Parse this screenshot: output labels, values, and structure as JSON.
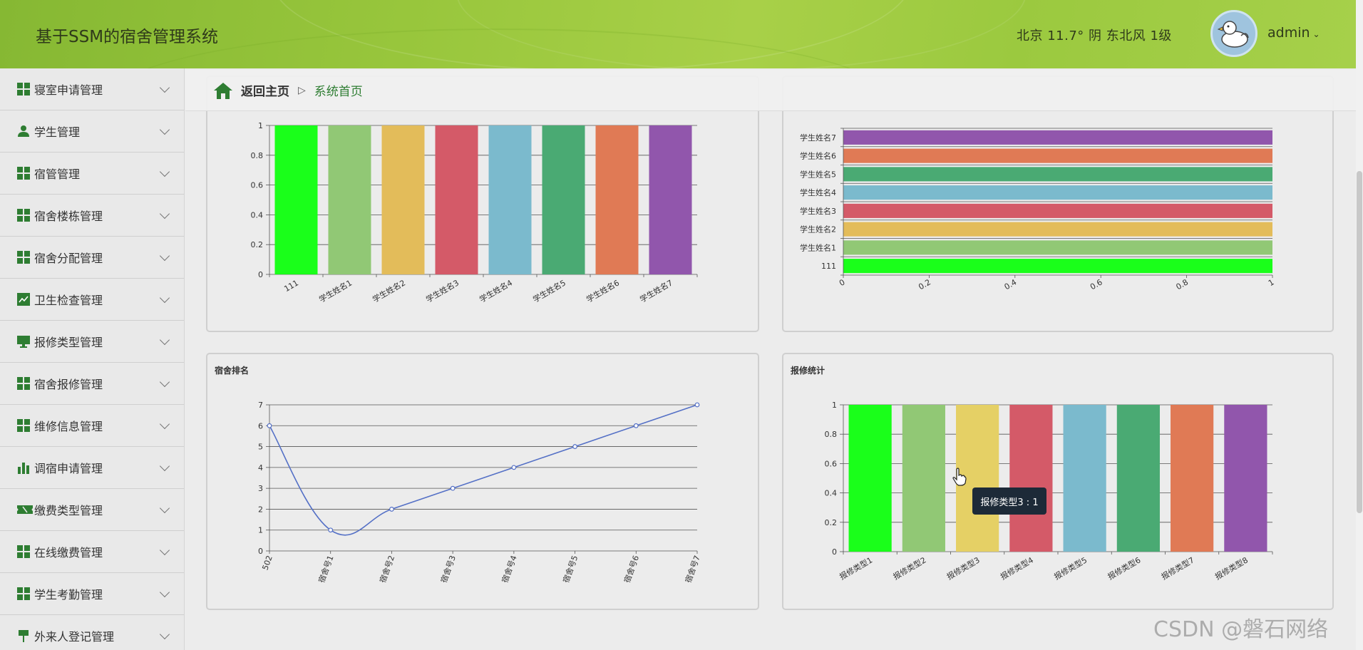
{
  "header": {
    "title": "基于SSM的宿舍管理系统",
    "weather": "北京  11.7°  阴  东北风  1级",
    "user": "admin"
  },
  "sidebar": {
    "items": [
      {
        "label": "寝室申请管理",
        "icon": "grid-icon"
      },
      {
        "label": "学生管理",
        "icon": "user-icon"
      },
      {
        "label": "宿管管理",
        "icon": "grid-icon"
      },
      {
        "label": "宿舍楼栋管理",
        "icon": "grid-icon"
      },
      {
        "label": "宿舍分配管理",
        "icon": "grid-icon"
      },
      {
        "label": "卫生检查管理",
        "icon": "line-chart-icon"
      },
      {
        "label": "报修类型管理",
        "icon": "monitor-icon"
      },
      {
        "label": "宿舍报修管理",
        "icon": "grid-icon"
      },
      {
        "label": "维修信息管理",
        "icon": "grid-icon"
      },
      {
        "label": "调宿申请管理",
        "icon": "bar-chart-icon"
      },
      {
        "label": "缴费类型管理",
        "icon": "ticket-icon"
      },
      {
        "label": "在线缴费管理",
        "icon": "grid-icon"
      },
      {
        "label": "学生考勤管理",
        "icon": "grid-icon"
      },
      {
        "label": "外来人登记管理",
        "icon": "flag-icon"
      }
    ]
  },
  "breadcrumb": {
    "home": "返回主页",
    "separator": "▷",
    "current": "系统首页"
  },
  "chart_data": [
    {
      "type": "bar",
      "title": "",
      "categories": [
        "111",
        "学生姓名1",
        "学生姓名2",
        "学生姓名3",
        "学生姓名4",
        "学生姓名5",
        "学生姓名6",
        "学生姓名7"
      ],
      "values": [
        1,
        1,
        1,
        1,
        1,
        1,
        1,
        1
      ],
      "ylim": [
        0,
        1
      ],
      "yticks": [
        "0",
        "0.2",
        "0.4",
        "0.6",
        "0.8",
        "1"
      ],
      "colors": [
        "#1aff1a",
        "#91c875",
        "#e3bc5a",
        "#d45a68",
        "#7bbacd",
        "#4aaa73",
        "#e07a55",
        "#9156ac"
      ]
    },
    {
      "type": "bar",
      "orientation": "horizontal",
      "title": "",
      "categories": [
        "111",
        "学生姓名1",
        "学生姓名2",
        "学生姓名3",
        "学生姓名4",
        "学生姓名5",
        "学生姓名6",
        "学生姓名7"
      ],
      "values": [
        1,
        1,
        1,
        1,
        1,
        1,
        1,
        1
      ],
      "xlim": [
        0,
        1
      ],
      "xticks": [
        "0",
        "0.2",
        "0.4",
        "0.6",
        "0.8",
        "1"
      ],
      "colors": [
        "#1aff1a",
        "#91c875",
        "#e3bc5a",
        "#d45a68",
        "#7bbacd",
        "#4aaa73",
        "#e07a55",
        "#9156ac"
      ]
    },
    {
      "type": "line",
      "title": "宿舍排名",
      "categories": [
        "502",
        "宿舍号1",
        "宿舍号2",
        "宿舍号3",
        "宿舍号4",
        "宿舍号5",
        "宿舍号6",
        "宿舍号7"
      ],
      "values": [
        6,
        1,
        2,
        3,
        4,
        5,
        6,
        7
      ],
      "ylim": [
        0,
        7
      ],
      "yticks": [
        "0",
        "1",
        "2",
        "3",
        "4",
        "5",
        "6",
        "7"
      ],
      "color": "#5470c6"
    },
    {
      "type": "bar",
      "title": "报修统计",
      "categories": [
        "报修类型1",
        "报修类型2",
        "报修类型3",
        "报修类型4",
        "报修类型5",
        "报修类型6",
        "报修类型7",
        "报修类型8"
      ],
      "values": [
        1,
        1,
        1,
        1,
        1,
        1,
        1,
        1
      ],
      "ylim": [
        0,
        1
      ],
      "yticks": [
        "0",
        "0.2",
        "0.4",
        "0.6",
        "0.8",
        "1"
      ],
      "colors": [
        "#1aff1a",
        "#91c875",
        "#e5d065",
        "#d45a68",
        "#7bbacd",
        "#4aaa73",
        "#e07a55",
        "#9156ac"
      ],
      "tooltip": "报修类型3 : 1"
    }
  ],
  "watermark": "CSDN @磐石网络"
}
